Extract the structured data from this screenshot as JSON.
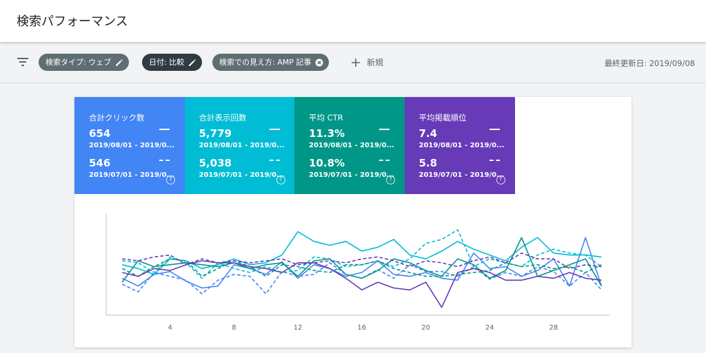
{
  "page": {
    "title": "検索パフォーマンス"
  },
  "filters": {
    "chips": [
      {
        "label": "検索タイプ: ウェブ",
        "action_icon": "edit-icon"
      },
      {
        "label": "日付: 比較",
        "action_icon": "edit-icon"
      },
      {
        "label": "検索での見え方: AMP 記事",
        "action_icon": "remove-icon"
      }
    ],
    "new_label": "新規",
    "last_updated": "最終更新日: 2019/09/08"
  },
  "metrics": [
    {
      "label": "合計クリック数",
      "current_value": "654",
      "current_range": "2019/08/01 - 2019/0...",
      "previous_value": "546",
      "previous_range": "2019/07/01 - 2019/0...",
      "color": "#4285f4"
    },
    {
      "label": "合計表示回数",
      "current_value": "5,779",
      "current_range": "2019/08/01 - 2019/0...",
      "previous_value": "5,038",
      "previous_range": "2019/07/01 - 2019/0...",
      "color": "#00bcd4"
    },
    {
      "label": "平均 CTR",
      "current_value": "11.3%",
      "current_range": "2019/08/01 - 2019/0...",
      "previous_value": "10.8%",
      "previous_range": "2019/07/01 - 2019/0...",
      "color": "#009688"
    },
    {
      "label": "平均掲載順位",
      "current_value": "7.4",
      "current_range": "2019/08/01 - 2019/0...",
      "previous_value": "5.8",
      "previous_range": "2019/07/01 - 2019/0...",
      "color": "#673ab7"
    }
  ],
  "chart_data": {
    "type": "line",
    "x_tick_labels": [
      "4",
      "8",
      "12",
      "16",
      "20",
      "24",
      "28"
    ],
    "x": [
      1,
      2,
      3,
      4,
      5,
      6,
      7,
      8,
      9,
      10,
      11,
      12,
      13,
      14,
      15,
      16,
      17,
      18,
      19,
      20,
      21,
      22,
      23,
      24,
      25,
      26,
      27,
      28,
      29,
      30,
      31
    ],
    "xlim": [
      0,
      31.5
    ],
    "ylim": [
      0,
      100
    ],
    "grid": false,
    "series": [
      {
        "color": "#4285f4",
        "style": "solid",
        "values": [
          38,
          30,
          42,
          45,
          35,
          28,
          30,
          52,
          48,
          42,
          55,
          38,
          52,
          48,
          40,
          44,
          56,
          42,
          40,
          44,
          38,
          36,
          64,
          48,
          50,
          40,
          46,
          58,
          30,
          80,
          30
        ]
      },
      {
        "color": "#4285f4",
        "style": "dashed",
        "values": [
          32,
          24,
          44,
          40,
          36,
          22,
          36,
          42,
          40,
          22,
          45,
          40,
          42,
          54,
          42,
          38,
          47,
          38,
          52,
          45,
          45,
          40,
          50,
          37,
          44,
          40,
          50,
          45,
          30,
          44,
          26
        ]
      },
      {
        "color": "#00bcd4",
        "style": "solid",
        "values": [
          52,
          48,
          42,
          58,
          56,
          48,
          52,
          58,
          52,
          54,
          62,
          86,
          76,
          72,
          76,
          66,
          70,
          78,
          62,
          58,
          66,
          76,
          68,
          62,
          56,
          70,
          80,
          64,
          62,
          62,
          60
        ]
      },
      {
        "color": "#00bcd4",
        "style": "dashed",
        "values": [
          56,
          54,
          44,
          60,
          54,
          38,
          54,
          48,
          44,
          50,
          44,
          46,
          60,
          58,
          50,
          52,
          56,
          50,
          58,
          74,
          78,
          88,
          50,
          58,
          54,
          50,
          62,
          68,
          64,
          62,
          50
        ]
      },
      {
        "color": "#009688",
        "style": "solid",
        "values": [
          34,
          56,
          50,
          52,
          54,
          52,
          50,
          54,
          48,
          52,
          54,
          40,
          56,
          58,
          42,
          38,
          46,
          58,
          54,
          46,
          40,
          58,
          52,
          38,
          46,
          80,
          40,
          46,
          52,
          58,
          30
        ]
      },
      {
        "color": "#009688",
        "style": "dashed",
        "values": [
          48,
          40,
          50,
          58,
          56,
          40,
          48,
          56,
          50,
          40,
          52,
          50,
          46,
          44,
          52,
          52,
          56,
          48,
          44,
          40,
          40,
          42,
          44,
          46,
          54,
          50,
          52,
          48,
          50,
          44,
          52
        ]
      },
      {
        "color": "#673ab7",
        "style": "solid",
        "values": [
          44,
          40,
          48,
          46,
          52,
          56,
          54,
          54,
          50,
          48,
          44,
          54,
          54,
          48,
          38,
          26,
          34,
          28,
          26,
          34,
          8,
          44,
          48,
          44,
          36,
          36,
          40,
          38,
          44,
          38,
          36
        ]
      },
      {
        "color": "#673ab7",
        "style": "dashed",
        "values": [
          58,
          56,
          60,
          62,
          52,
          58,
          54,
          56,
          54,
          56,
          58,
          52,
          54,
          56,
          54,
          58,
          60,
          56,
          50,
          56,
          54,
          50,
          56,
          60,
          54,
          64,
          58,
          58,
          48,
          52,
          50
        ]
      }
    ]
  }
}
